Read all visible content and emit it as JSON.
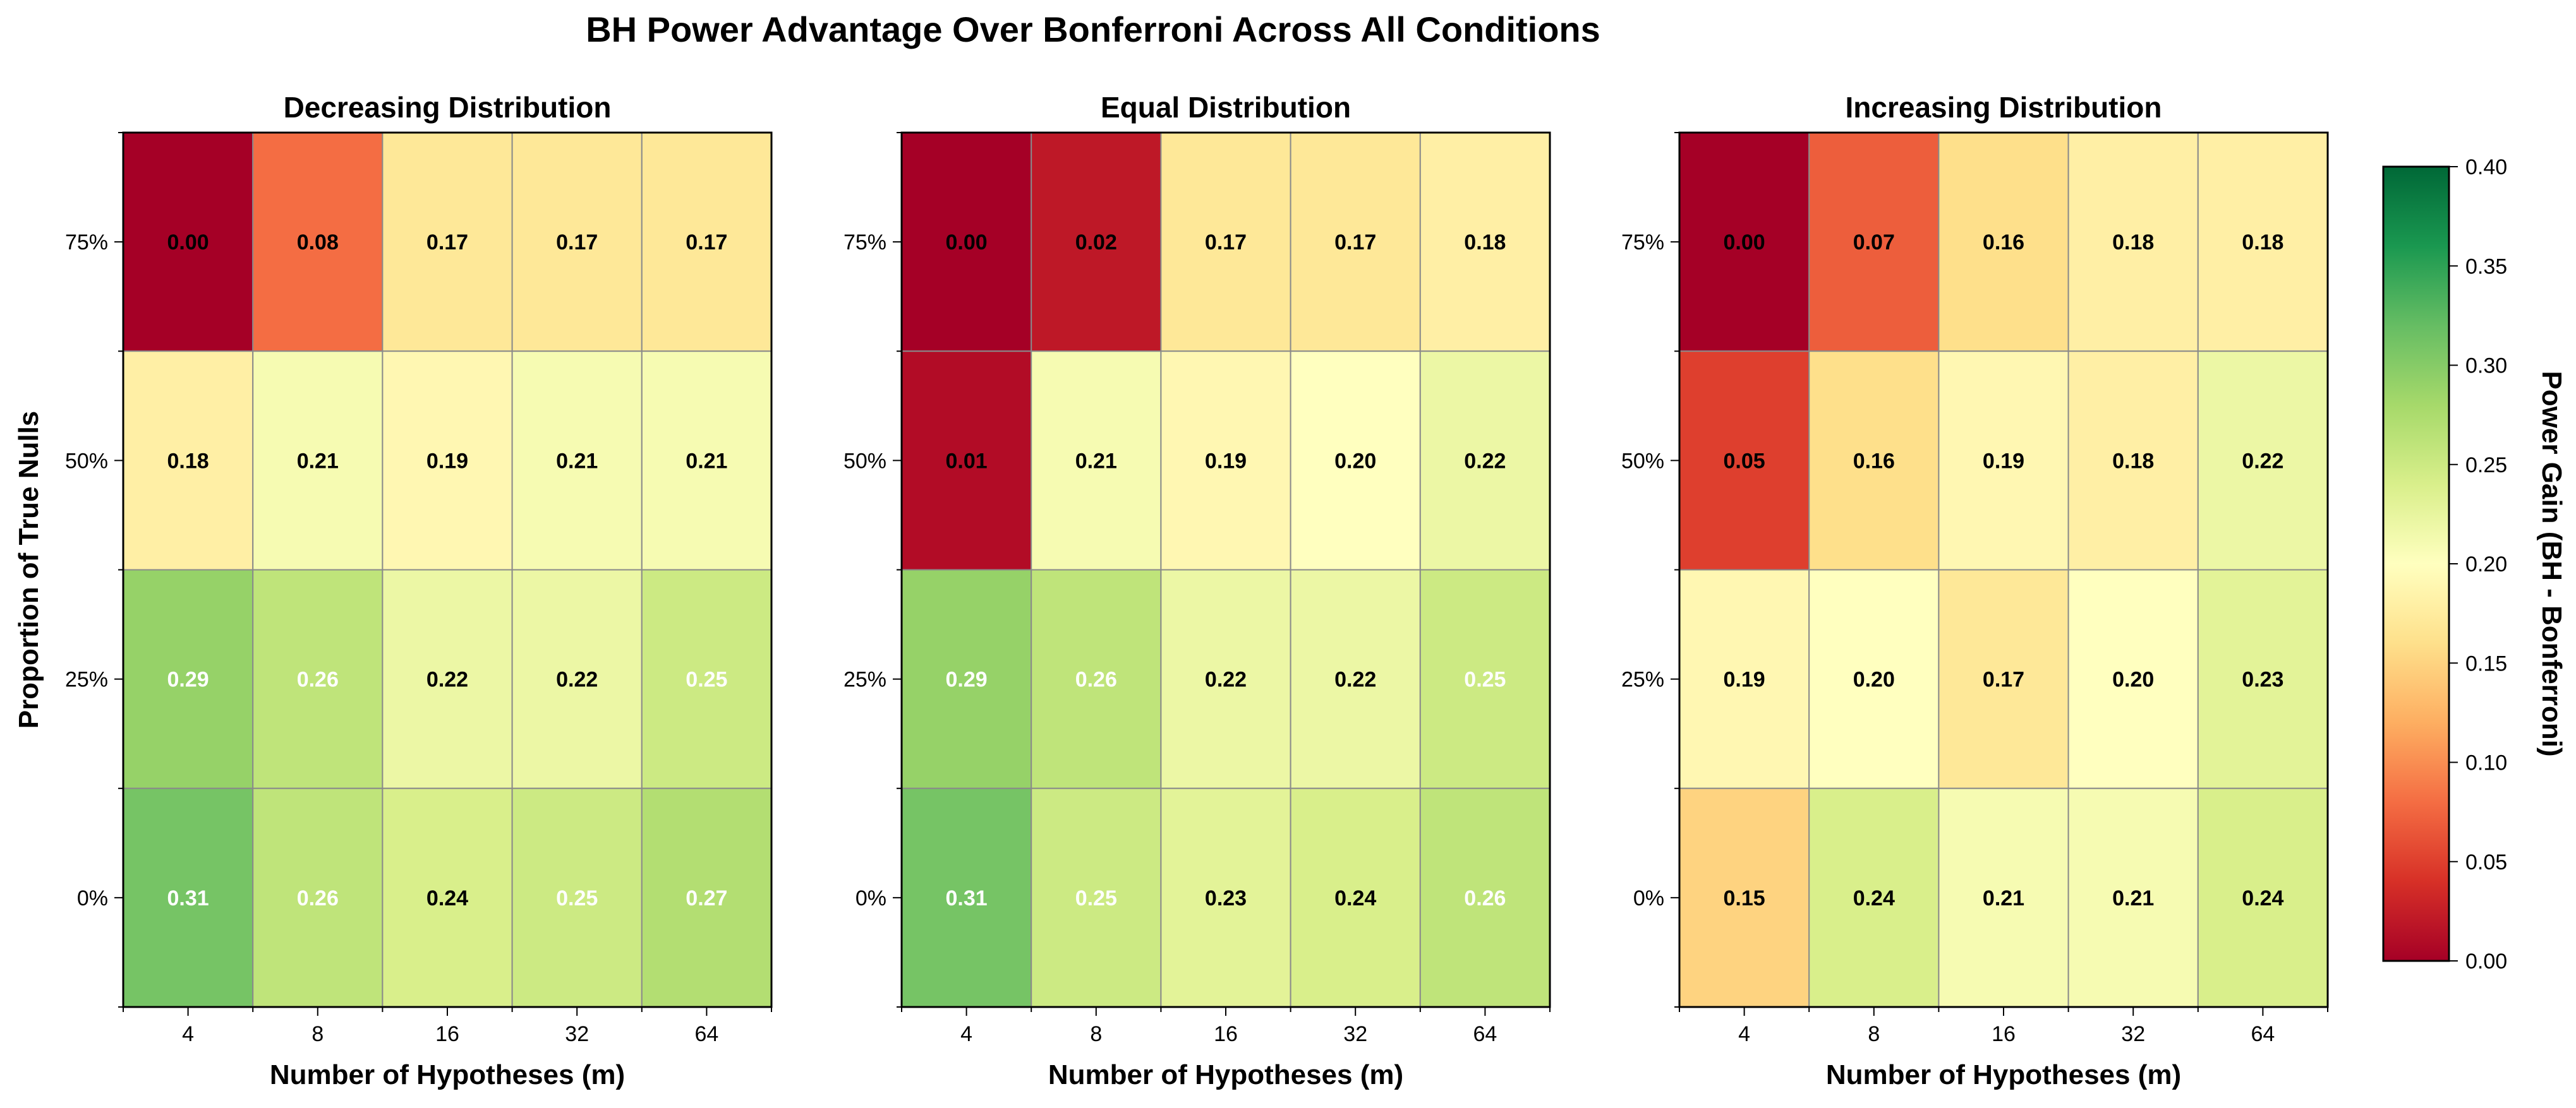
{
  "title": "BH Power Advantage Over Bonferroni Across All Conditions",
  "colorbar": {
    "label": "Power Gain (BH - Bonferroni)",
    "ticks": [
      "0.00",
      "0.05",
      "0.10",
      "0.15",
      "0.20",
      "0.25",
      "0.30",
      "0.35",
      "0.40"
    ],
    "range": [
      0,
      0.4
    ],
    "colormap": "RdYlGn"
  },
  "chart_data": [
    {
      "type": "heatmap",
      "title": "Decreasing Distribution",
      "xlabel": "Number of Hypotheses (m)",
      "ylabel": "Proportion of True Nulls",
      "x": [
        "4",
        "8",
        "16",
        "32",
        "64"
      ],
      "y": [
        "75%",
        "50%",
        "25%",
        "0%"
      ],
      "values": [
        [
          0.0,
          0.08,
          0.17,
          0.17,
          0.17
        ],
        [
          0.18,
          0.21,
          0.19,
          0.21,
          0.21
        ],
        [
          0.29,
          0.26,
          0.22,
          0.22,
          0.25
        ],
        [
          0.31,
          0.26,
          0.24,
          0.25,
          0.27
        ]
      ],
      "vmin": 0,
      "vmax": 0.4
    },
    {
      "type": "heatmap",
      "title": "Equal Distribution",
      "xlabel": "Number of Hypotheses (m)",
      "ylabel": "",
      "x": [
        "4",
        "8",
        "16",
        "32",
        "64"
      ],
      "y": [
        "75%",
        "50%",
        "25%",
        "0%"
      ],
      "values": [
        [
          0.0,
          0.02,
          0.17,
          0.17,
          0.18
        ],
        [
          0.01,
          0.21,
          0.19,
          0.2,
          0.22
        ],
        [
          0.29,
          0.26,
          0.22,
          0.22,
          0.25
        ],
        [
          0.31,
          0.25,
          0.23,
          0.24,
          0.26
        ]
      ],
      "vmin": 0,
      "vmax": 0.4
    },
    {
      "type": "heatmap",
      "title": "Increasing Distribution",
      "xlabel": "Number of Hypotheses (m)",
      "ylabel": "",
      "x": [
        "4",
        "8",
        "16",
        "32",
        "64"
      ],
      "y": [
        "75%",
        "50%",
        "25%",
        "0%"
      ],
      "values": [
        [
          0.0,
          0.07,
          0.16,
          0.18,
          0.18
        ],
        [
          0.05,
          0.16,
          0.19,
          0.18,
          0.22
        ],
        [
          0.19,
          0.2,
          0.17,
          0.2,
          0.23
        ],
        [
          0.15,
          0.24,
          0.21,
          0.21,
          0.24
        ]
      ],
      "vmin": 0,
      "vmax": 0.4
    }
  ]
}
